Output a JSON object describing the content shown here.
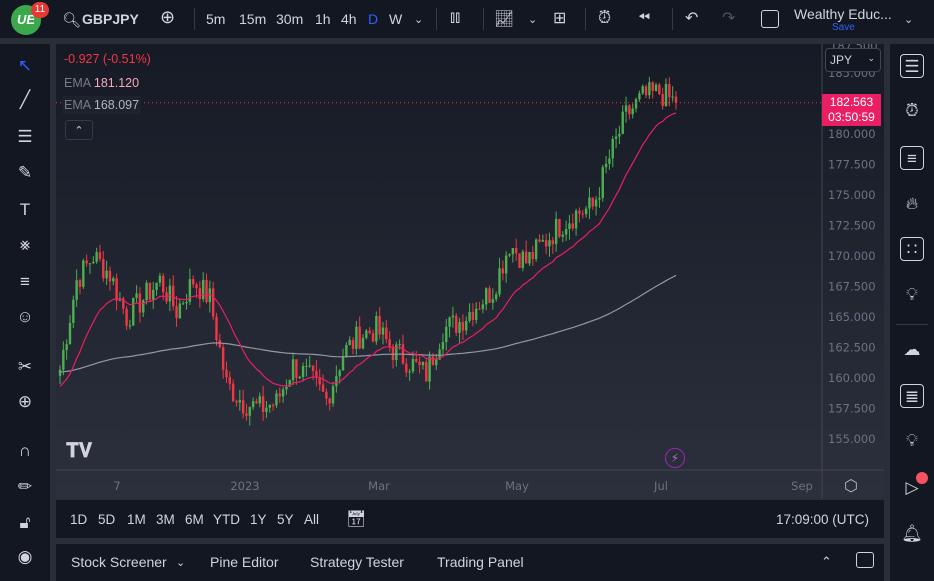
{
  "topbar": {
    "badge_count": "11",
    "symbol": "GBPJPY",
    "intervals": [
      "5m",
      "15m",
      "30m",
      "1h",
      "4h",
      "D",
      "W"
    ],
    "active_interval": "D",
    "layout_name": "Wealthy Educ...",
    "save_label": "Save"
  },
  "legend": {
    "change": "-0.927 (-0.51%)",
    "ema1_label": "EMA",
    "ema1_value": "181.120",
    "ema2_label": "EMA",
    "ema2_value": "168.097"
  },
  "price_axis": {
    "currency": "JPY",
    "current_price": "182.563",
    "countdown": "03:50:59",
    "top_partial": "187.500"
  },
  "time_axis": {
    "labels": [
      "7",
      "2023",
      "Mar",
      "May",
      "Jul",
      "Sep"
    ]
  },
  "range_bar": {
    "ranges": [
      "1D",
      "5D",
      "1M",
      "3M",
      "6M",
      "YTD",
      "1Y",
      "5Y",
      "All"
    ],
    "time": "17:09:00 (UTC)"
  },
  "bottom_panel": {
    "tabs": [
      "Stock Screener",
      "Pine Editor",
      "Strategy Tester",
      "Trading Panel"
    ]
  },
  "colors": {
    "up": "#26a69a",
    "up_green": "#4caf50",
    "down": "#f23645",
    "ema_fast": "#e91e63",
    "ema_slow": "#9598a1",
    "price_tag": "#e91e63"
  },
  "chart_data": {
    "type": "candlestick",
    "symbol": "GBPJPY",
    "timeframe": "D",
    "ylim": [
      153.5,
      187
    ],
    "y_ticks": [
      155,
      157.5,
      160,
      162.5,
      165,
      167.5,
      170,
      172.5,
      175,
      177.5,
      180,
      185
    ],
    "x_labels": [
      "7",
      "2023",
      "Mar",
      "May",
      "Jul",
      "Sep"
    ],
    "weekly_closes": [
      160.7,
      168,
      170,
      168.5,
      165,
      166.5,
      168,
      165.5,
      168,
      166.5,
      159.5,
      158,
      157.5,
      158,
      161,
      160,
      158.2,
      162,
      163.5,
      164,
      162.3,
      161.3,
      160.3,
      164,
      164.6,
      166,
      167.2,
      171,
      169.5,
      171,
      172.5,
      173.5,
      174,
      178,
      181.5,
      183,
      183.4,
      182.563
    ],
    "last_price": 182.563,
    "ema_fast_last": 181.12,
    "ema_slow_last": 168.097
  }
}
